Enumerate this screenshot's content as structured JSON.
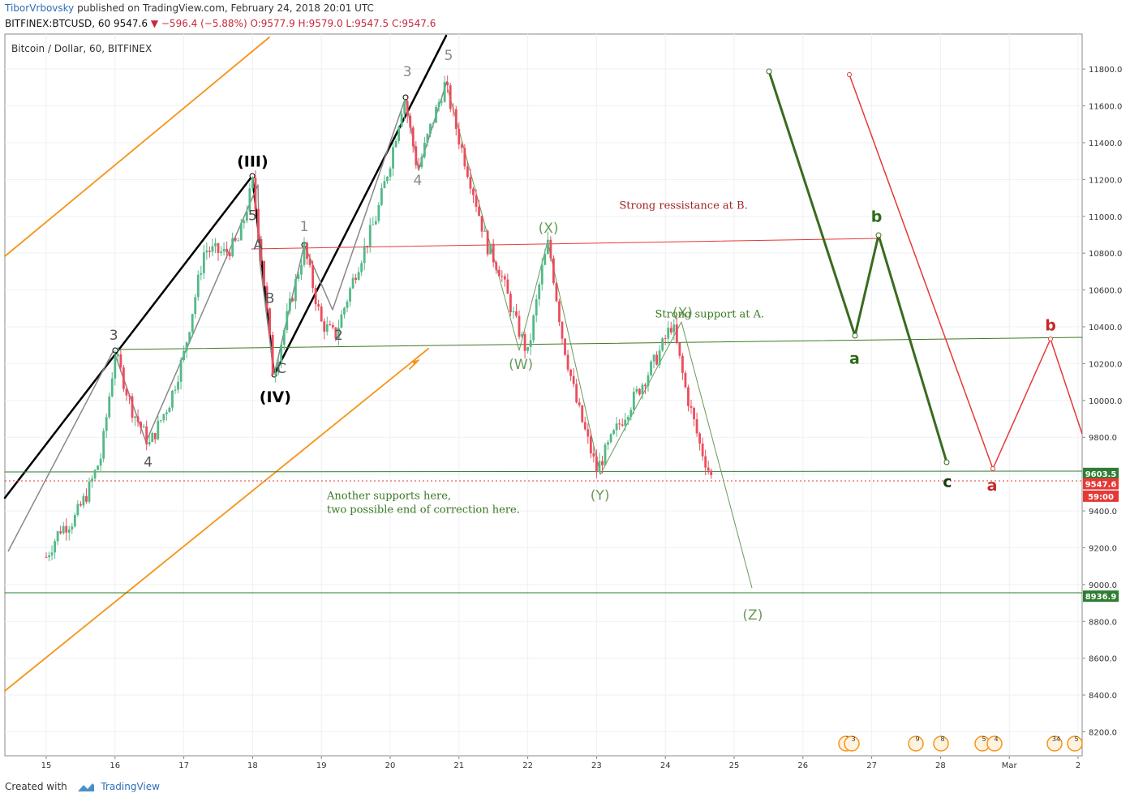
{
  "header": {
    "author": "TiborVrbovsky",
    "published_text": "published on TradingView.com, February 24, 2018 20:01 UTC",
    "symbol_line": "BITFINEX:BTCUSD, 60",
    "last": "9547.6",
    "change": "−596.4 (−5.88%)",
    "ohlc": "O:9577.9 H:9579.0 L:9547.5 C:9547.6",
    "down_arrow": "▼"
  },
  "chart_data": {
    "type": "candlestick",
    "title": "Bitcoin / Dollar, 60, BITFINEX",
    "x_tick_labels": [
      "15",
      "16",
      "17",
      "18",
      "19",
      "20",
      "21",
      "22",
      "23",
      "24",
      "25",
      "26",
      "27",
      "28",
      "Mar",
      "2"
    ],
    "y_tick_labels": [
      "8200.0",
      "8400.0",
      "8600.0",
      "8800.0",
      "9000.0",
      "9200.0",
      "9400.0",
      "9600.0",
      "9800.0",
      "10000.0",
      "10200.0",
      "10400.0",
      "10600.0",
      "10800.0",
      "11000.0",
      "11200.0",
      "11400.0",
      "11600.0",
      "11800.0"
    ],
    "ylim": [
      8070,
      11990
    ],
    "price_tags": [
      {
        "label": "9603.5",
        "value": 9603.5,
        "color": "#2e7d32"
      },
      {
        "label": "9547.6",
        "value": 9547.6,
        "color": "#e53935"
      },
      {
        "label": "59:00",
        "value": 9480,
        "color": "#e53935"
      },
      {
        "label": "8936.9",
        "value": 8936.9,
        "color": "#2e7d32"
      }
    ],
    "price_path": [
      [
        0.0,
        9150
      ],
      [
        0.2,
        9300
      ],
      [
        0.4,
        9350
      ],
      [
        0.6,
        9500
      ],
      [
        0.8,
        9700
      ],
      [
        1.0,
        10260
      ],
      [
        1.25,
        9950
      ],
      [
        1.5,
        9760
      ],
      [
        1.8,
        10000
      ],
      [
        2.0,
        10250
      ],
      [
        2.3,
        10820
      ],
      [
        2.6,
        10800
      ],
      [
        2.8,
        10870
      ],
      [
        3.0,
        11180
      ],
      [
        3.15,
        10700
      ],
      [
        3.3,
        10130
      ],
      [
        3.5,
        10450
      ],
      [
        3.75,
        10830
      ],
      [
        4.0,
        10420
      ],
      [
        4.2,
        10350
      ],
      [
        4.5,
        10700
      ],
      [
        4.8,
        11000
      ],
      [
        5.0,
        11300
      ],
      [
        5.2,
        11650
      ],
      [
        5.4,
        11250
      ],
      [
        5.6,
        11500
      ],
      [
        5.8,
        11720
      ],
      [
        6.0,
        11420
      ],
      [
        6.2,
        11150
      ],
      [
        6.4,
        10850
      ],
      [
        6.6,
        10700
      ],
      [
        6.8,
        10450
      ],
      [
        7.0,
        10250
      ],
      [
        7.2,
        10700
      ],
      [
        7.3,
        10860
      ],
      [
        7.5,
        10350
      ],
      [
        7.7,
        10000
      ],
      [
        8.0,
        9620
      ],
      [
        8.3,
        9850
      ],
      [
        8.6,
        10050
      ],
      [
        8.9,
        10250
      ],
      [
        9.1,
        10420
      ],
      [
        9.3,
        10050
      ],
      [
        9.5,
        9760
      ],
      [
        9.7,
        9547.6
      ]
    ],
    "annotations": [
      {
        "text": "3",
        "x": 0.98,
        "y": 10330,
        "color": "#555"
      },
      {
        "text": "4",
        "x": 1.48,
        "y": 9640,
        "color": "#555"
      },
      {
        "text": "(III)",
        "x": 3.0,
        "y": 11270,
        "color": "#000",
        "bold": true
      },
      {
        "text": "5",
        "x": 3.0,
        "y": 10980,
        "color": "#555"
      },
      {
        "text": "A",
        "x": 3.08,
        "y": 10820,
        "color": "#555"
      },
      {
        "text": "B",
        "x": 3.25,
        "y": 10530,
        "color": "#555"
      },
      {
        "text": "C",
        "x": 3.42,
        "y": 10150,
        "color": "#555"
      },
      {
        "text": "(IV)",
        "x": 3.33,
        "y": 9990,
        "color": "#000",
        "bold": true
      },
      {
        "text": "1",
        "x": 3.75,
        "y": 10920,
        "color": "#888"
      },
      {
        "text": "2",
        "x": 4.25,
        "y": 10330,
        "color": "#555"
      },
      {
        "text": "3",
        "x": 5.25,
        "y": 11760,
        "color": "#888"
      },
      {
        "text": "4",
        "x": 5.4,
        "y": 11170,
        "color": "#888"
      },
      {
        "text": "5",
        "x": 5.85,
        "y": 11850,
        "color": "#888"
      },
      {
        "text": "(X)",
        "x": 7.3,
        "y": 10910,
        "color": "#6a9a5a"
      },
      {
        "text": "(W)",
        "x": 6.9,
        "y": 10170,
        "color": "#6a9a5a"
      },
      {
        "text": "(X)",
        "x": 9.25,
        "y": 10450,
        "color": "#6a9a5a"
      },
      {
        "text": "(Y)",
        "x": 8.05,
        "y": 9460,
        "color": "#6a9a5a"
      },
      {
        "text": "(Z)",
        "x": 10.27,
        "y": 8810,
        "color": "#6a9a5a"
      },
      {
        "text": "a",
        "x": 11.75,
        "y": 10200,
        "color": "#2e6b1a",
        "bold": true
      },
      {
        "text": "b",
        "x": 12.07,
        "y": 10970,
        "color": "#2e6b1a",
        "bold": true
      },
      {
        "text": "c",
        "x": 13.1,
        "y": 9530,
        "color": "#1a3a10",
        "bold": true
      },
      {
        "text": "a",
        "x": 13.75,
        "y": 9510,
        "color": "#c62828",
        "bold": true
      },
      {
        "text": "b",
        "x": 14.6,
        "y": 10380,
        "color": "#c62828",
        "bold": true
      }
    ],
    "notes": [
      {
        "text": "Strong ressistance at B.",
        "x": 8.33,
        "y": 11040,
        "color": "#a32525"
      },
      {
        "text": "Strong support at A.",
        "x": 8.85,
        "y": 10450,
        "color": "#3a7a20"
      },
      {
        "text": "Another supports here,",
        "x": 4.08,
        "y": 9465,
        "color": "#3a7a20"
      },
      {
        "text": "two possible end of correction here.",
        "x": 4.08,
        "y": 9390,
        "color": "#3a7a20"
      }
    ],
    "event_badges": [
      "3",
      "3",
      "9",
      "8",
      "5",
      "4",
      "34",
      "5"
    ],
    "grid": true
  },
  "footer": {
    "created_with": "Created with",
    "brand": "TradingView"
  }
}
